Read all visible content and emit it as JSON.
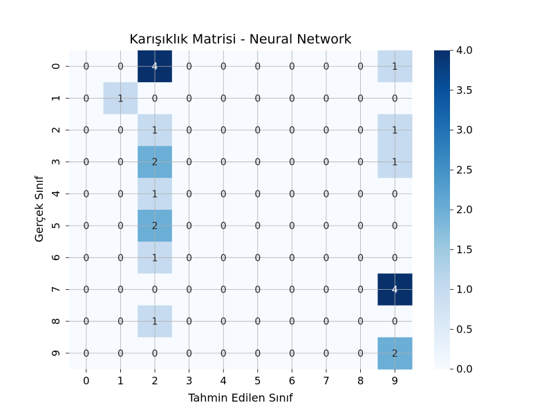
{
  "chart_data": {
    "type": "heatmap",
    "title": "Karışıklık Matrisi - Neural Network",
    "xlabel": "Tahmin Edilen Sınıf",
    "ylabel": "Gerçek Sınıf",
    "x_categories": [
      "0",
      "1",
      "2",
      "3",
      "4",
      "5",
      "6",
      "7",
      "8",
      "9"
    ],
    "y_categories": [
      "0",
      "1",
      "2",
      "3",
      "4",
      "5",
      "6",
      "7",
      "8",
      "9"
    ],
    "values": [
      [
        0,
        0,
        4,
        0,
        0,
        0,
        0,
        0,
        0,
        1
      ],
      [
        0,
        1,
        0,
        0,
        0,
        0,
        0,
        0,
        0,
        0
      ],
      [
        0,
        0,
        1,
        0,
        0,
        0,
        0,
        0,
        0,
        1
      ],
      [
        0,
        0,
        2,
        0,
        0,
        0,
        0,
        0,
        0,
        1
      ],
      [
        0,
        0,
        1,
        0,
        0,
        0,
        0,
        0,
        0,
        0
      ],
      [
        0,
        0,
        2,
        0,
        0,
        0,
        0,
        0,
        0,
        0
      ],
      [
        0,
        0,
        1,
        0,
        0,
        0,
        0,
        0,
        0,
        0
      ],
      [
        0,
        0,
        0,
        0,
        0,
        0,
        0,
        0,
        0,
        4
      ],
      [
        0,
        0,
        1,
        0,
        0,
        0,
        0,
        0,
        0,
        0
      ],
      [
        0,
        0,
        0,
        0,
        0,
        0,
        0,
        0,
        0,
        2
      ]
    ],
    "colormap": "Blues",
    "color_range": [
      0.0,
      4.0
    ],
    "colorbar_ticks": [
      "0.0",
      "0.5",
      "1.0",
      "1.5",
      "2.0",
      "2.5",
      "3.0",
      "3.5",
      "4.0"
    ],
    "grid": true,
    "annotations": true
  }
}
